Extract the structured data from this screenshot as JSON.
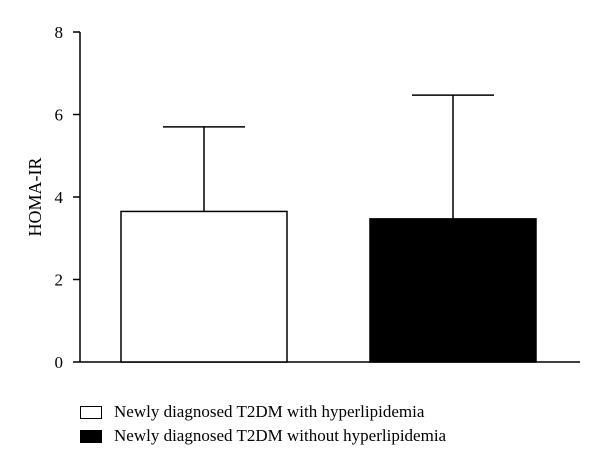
{
  "chart_data": {
    "type": "bar",
    "ylabel": "HOMA-IR",
    "xlabel": "",
    "ylim": [
      0,
      8
    ],
    "yticks": [
      0,
      2,
      4,
      6,
      8
    ],
    "grid": false,
    "legend_position": "bottom",
    "categories": [
      "Newly diagnosed T2DM with hyperlipidemia",
      "Newly diagnosed T2DM without hyperlipidemia"
    ],
    "values": [
      3.65,
      3.47
    ],
    "error_upper": [
      2.05,
      3.0
    ],
    "colors": [
      "#ffffff",
      "#000000"
    ],
    "legend": [
      {
        "label": "Newly diagnosed T2DM with hyperlipidemia",
        "color": "#ffffff"
      },
      {
        "label": "Newly diagnosed T2DM without hyperlipidemia",
        "color": "#000000"
      }
    ]
  }
}
